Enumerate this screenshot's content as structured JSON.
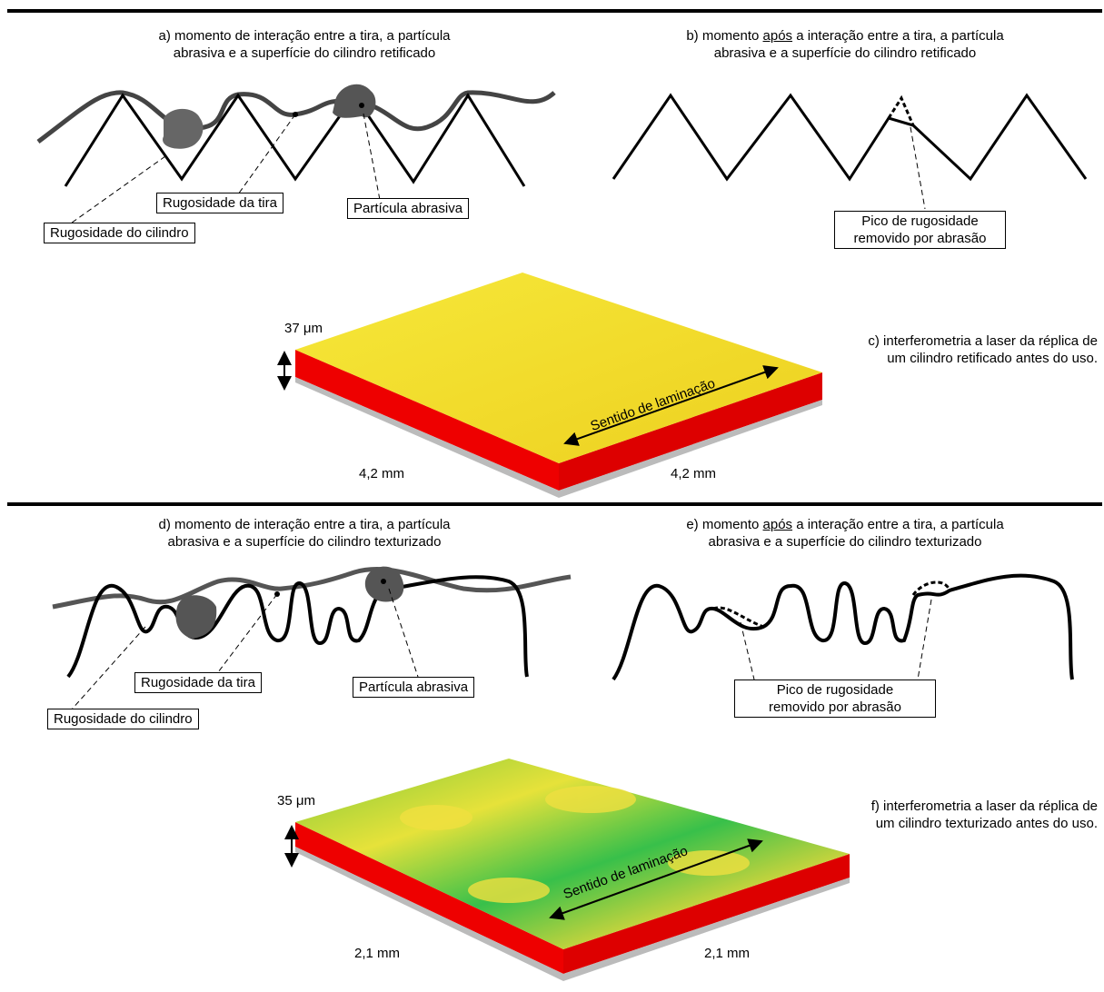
{
  "panel_a": {
    "caption": [
      "a) momento de interação entre a tira, a partícula",
      "abrasiva e a superfície do cilindro retificado"
    ],
    "strip_label": "Rugosidade da tira",
    "particle_label": "Partícula abrasiva",
    "roll_label": "Rugosidade do cilindro"
  },
  "panel_b": {
    "caption_prefix": "b) momento ",
    "caption_emphasis": "após",
    "caption_rest": " a interação entre a tira, a partícula",
    "caption_line2": "abrasiva e a superfície do cilindro retificado",
    "callout": [
      "Pico de rugosidade",
      "removido por abrasão"
    ]
  },
  "panel_c": {
    "height_scale": "37 μm",
    "width_left": "4,2 mm",
    "width_right": "4,2 mm",
    "direction": "Sentido de laminação",
    "caption": [
      "c) interferometria a laser da réplica de",
      "um cilindro retificado antes do uso."
    ]
  },
  "panel_d": {
    "caption": [
      "d) momento de interação entre a tira, a partícula",
      "abrasiva e a superfície do cilindro texturizado"
    ],
    "strip_label": "Rugosidade da tira",
    "particle_label": "Partícula abrasiva",
    "roll_label": "Rugosidade do cilindro"
  },
  "panel_e": {
    "caption_prefix": "e) momento ",
    "caption_emphasis": "após",
    "caption_rest": " a interação entre a tira, a partícula",
    "caption_line2": "abrasiva e a superfície do cilindro texturizado",
    "callout": [
      "Pico de rugosidade",
      "removido por abrasão"
    ]
  },
  "panel_f": {
    "height_scale": "35 μm",
    "width_left": "2,1 mm",
    "width_right": "2,1 mm",
    "direction": "Sentido de laminação",
    "caption": [
      "f) interferometria a laser da réplica de",
      "um cilindro texturizado antes do uso."
    ]
  }
}
